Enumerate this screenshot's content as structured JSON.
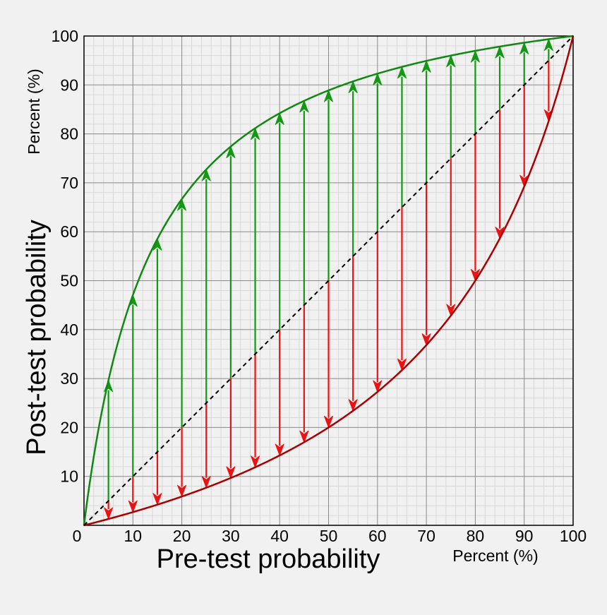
{
  "chart_data": {
    "type": "line",
    "xlabel": "Pre-test probability",
    "ylabel": "Post-test probability",
    "x_unit": "Percent (%)",
    "y_unit": "Percent (%)",
    "xlim": [
      0,
      100
    ],
    "ylim": [
      0,
      100
    ],
    "x_ticks": [
      "0",
      "10",
      "20",
      "30",
      "40",
      "50",
      "60",
      "70",
      "80",
      "90",
      "100"
    ],
    "y_ticks": [
      "10",
      "20",
      "30",
      "40",
      "50",
      "60",
      "70",
      "80",
      "90",
      "100"
    ],
    "grid": true,
    "likelihood_ratio_positive": 8,
    "likelihood_ratio_negative": 0.25,
    "pretest_points": [
      5,
      10,
      15,
      20,
      25,
      30,
      35,
      40,
      45,
      50,
      55,
      60,
      65,
      70,
      75,
      80,
      85,
      90,
      95
    ],
    "series": [
      {
        "color": "#118811",
        "values_ref": "pretest_points",
        "kind": "curve"
      },
      {
        "color": "#aa0000",
        "kind": "curve"
      },
      {
        "color": "#000000",
        "kind": "diagonal"
      }
    ],
    "arrow_up_color": "#119911",
    "arrow_down_color": "#ee1111"
  }
}
